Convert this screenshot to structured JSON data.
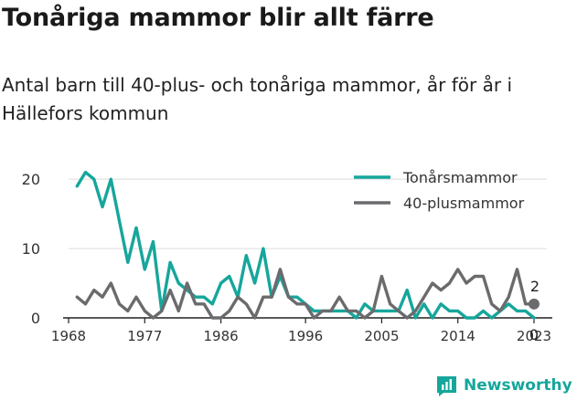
{
  "title": "Tonåriga mammor blir allt färre",
  "subtitle": "Antal barn till 40-plus- och tonåriga mammor, år för år i Hällefors kommun",
  "brand": "Newsworthy",
  "colors": {
    "teen": "#16a69b",
    "plus40": "#6b6b6e",
    "axis": "#222222",
    "grid": "#dcdcdc",
    "brand": "#16a69b"
  },
  "chart_data": {
    "type": "line",
    "x": [
      1968,
      1969,
      1970,
      1971,
      1972,
      1973,
      1974,
      1975,
      1976,
      1977,
      1978,
      1979,
      1980,
      1981,
      1982,
      1983,
      1984,
      1985,
      1986,
      1987,
      1988,
      1989,
      1990,
      1991,
      1992,
      1993,
      1994,
      1995,
      1996,
      1997,
      1998,
      1999,
      2000,
      2001,
      2002,
      2003,
      2004,
      2005,
      2006,
      2007,
      2008,
      2009,
      2010,
      2011,
      2012,
      2013,
      2014,
      2015,
      2016,
      2017,
      2018,
      2019,
      2020,
      2021,
      2022,
      2023
    ],
    "series": [
      {
        "name": "Tonårsmammor",
        "values": [
          null,
          19,
          21,
          20,
          16,
          20,
          14,
          8,
          13,
          7,
          11,
          1,
          8,
          5,
          4,
          3,
          3,
          2,
          5,
          6,
          3,
          9,
          5,
          10,
          3,
          6,
          3,
          3,
          2,
          1,
          1,
          1,
          1,
          1,
          0,
          2,
          1,
          1,
          1,
          1,
          4,
          0,
          2,
          0,
          2,
          1,
          1,
          0,
          0,
          1,
          0,
          1,
          2,
          1,
          1,
          0
        ]
      },
      {
        "name": "40-plusmammor",
        "values": [
          null,
          3,
          2,
          4,
          3,
          5,
          2,
          1,
          3,
          1,
          0,
          1,
          4,
          1,
          5,
          2,
          2,
          0,
          0,
          1,
          3,
          2,
          0,
          3,
          3,
          7,
          3,
          2,
          2,
          0,
          1,
          1,
          3,
          1,
          1,
          0,
          1,
          6,
          2,
          1,
          0,
          1,
          3,
          5,
          4,
          5,
          7,
          5,
          6,
          6,
          2,
          1,
          3,
          7,
          2,
          2
        ]
      }
    ],
    "end_labels": [
      "2",
      "0"
    ],
    "x_ticks": [
      1968,
      1977,
      1986,
      1996,
      2005,
      2014,
      2023
    ],
    "x_tick_labels": [
      "1968",
      "1977",
      "1986",
      "1996",
      "2005",
      "2014",
      "2023"
    ],
    "y_ticks": [
      0,
      10,
      20
    ],
    "y_tick_labels": [
      "0",
      "10",
      "20"
    ],
    "xlim": [
      1968,
      2023
    ],
    "ylim": [
      0,
      22
    ],
    "legend_position": "top-right",
    "grid": "horizontal"
  }
}
